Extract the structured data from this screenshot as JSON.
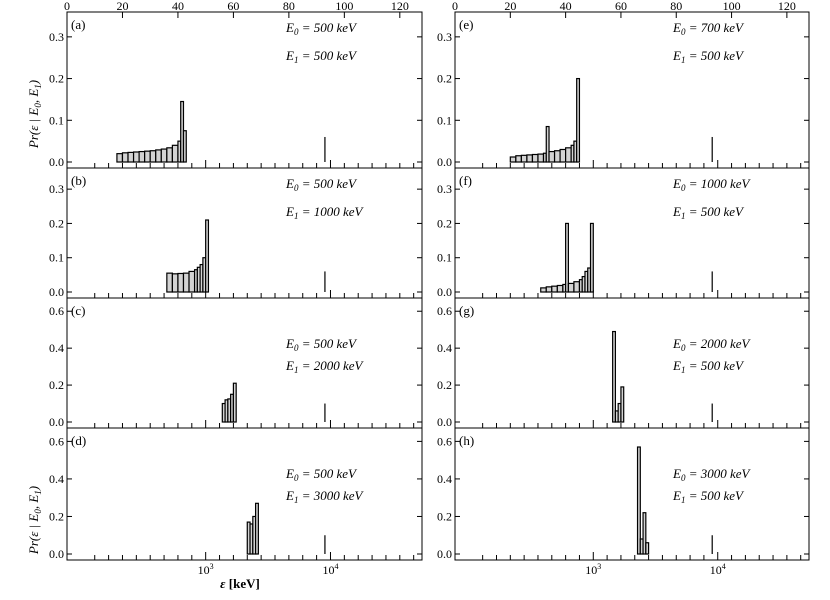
{
  "figure": {
    "xlabel_symbol": "ε",
    "xlabel_unit": " [keV]",
    "ylabel_main": "Pr(ε | E",
    "ylabel_sub0": "0",
    "ylabel_mid": ", E",
    "ylabel_sub1": "1",
    "ylabel_end": ")",
    "top_axis_ticks": [
      "0",
      "20",
      "40",
      "60",
      "80",
      "100",
      "120"
    ],
    "bottom_axis_ticks": [
      {
        "value": 1000,
        "base": "10",
        "exp": "3"
      },
      {
        "value": 10000,
        "base": "10",
        "exp": "4"
      }
    ],
    "bar_fill_color": "#d3d3d3",
    "line_color": "#000000"
  },
  "chart_data": [
    {
      "type": "bar",
      "panel": "(a)",
      "column": "left",
      "row": 0,
      "ylim": [
        0,
        0.35
      ],
      "yticks": [
        "0.0",
        "0.1",
        "0.2",
        "0.3"
      ],
      "annotation_e0": {
        "label": "E",
        "sub": "0",
        "value": " = 500 keV"
      },
      "annotation_e1": {
        "label": "E",
        "sub": "1",
        "value": " = 500 keV"
      },
      "x_top_units": [
        18,
        20,
        22,
        24,
        26,
        28,
        30,
        32,
        34,
        36,
        38,
        40,
        41,
        42
      ],
      "values": [
        0.02,
        0.022,
        0.023,
        0.024,
        0.025,
        0.026,
        0.027,
        0.029,
        0.031,
        0.034,
        0.04,
        0.05,
        0.145,
        0.075
      ],
      "bin_width_top_units": [
        2,
        2,
        2,
        2,
        2,
        2,
        2,
        2,
        2,
        2,
        2,
        1,
        1,
        1
      ],
      "markers": [
        {
          "x": 93,
          "value": 0.06
        }
      ]
    },
    {
      "type": "bar",
      "panel": "(b)",
      "column": "left",
      "row": 1,
      "ylim": [
        0,
        0.35
      ],
      "yticks": [
        "0.0",
        "0.1",
        "0.2",
        "0.3"
      ],
      "annotation_e0": {
        "label": "E",
        "sub": "0",
        "value": " = 500 keV"
      },
      "annotation_e1": {
        "label": "E",
        "sub": "1",
        "value": " = 1000 keV"
      },
      "x_top_units": [
        36,
        38,
        40,
        42,
        44,
        46,
        47,
        48,
        49,
        50,
        51
      ],
      "values": [
        0.055,
        0.053,
        0.054,
        0.055,
        0.06,
        0.065,
        0.072,
        0.08,
        0.1,
        0.21,
        0.0
      ],
      "bin_width_top_units": [
        2,
        2,
        2,
        2,
        2,
        1,
        1,
        1,
        1,
        1,
        0
      ],
      "markers": [
        {
          "x": 93,
          "value": 0.06
        }
      ]
    },
    {
      "type": "bar",
      "panel": "(c)",
      "column": "left",
      "row": 2,
      "ylim": [
        0,
        0.65
      ],
      "yticks": [
        "0.0",
        "0.2",
        "0.4",
        "0.6"
      ],
      "annotation_e0": {
        "label": "E",
        "sub": "0",
        "value": " = 500 keV"
      },
      "annotation_e1": {
        "label": "E",
        "sub": "1",
        "value": " = 2000 keV"
      },
      "x_top_units": [
        56,
        57,
        58,
        59,
        60,
        61
      ],
      "values": [
        0.1,
        0.12,
        0.125,
        0.15,
        0.21,
        0.0
      ],
      "bin_width_top_units": [
        1,
        1,
        1,
        1,
        1,
        0
      ],
      "markers": [
        {
          "x": 93,
          "value": 0.1
        }
      ]
    },
    {
      "type": "bar",
      "panel": "(d)",
      "column": "left",
      "row": 3,
      "ylim": [
        0,
        0.65
      ],
      "yticks": [
        "0.0",
        "0.2",
        "0.4",
        "0.6"
      ],
      "annotation_e0": {
        "label": "E",
        "sub": "0",
        "value": " = 500 keV"
      },
      "annotation_e1": {
        "label": "E",
        "sub": "1",
        "value": " = 3000 keV"
      },
      "x_top_units": [
        65,
        66,
        67,
        68,
        69
      ],
      "values": [
        0.17,
        0.16,
        0.2,
        0.27,
        0.0
      ],
      "bin_width_top_units": [
        1,
        1,
        1,
        1,
        0
      ],
      "markers": [
        {
          "x": 93,
          "value": 0.1
        }
      ]
    },
    {
      "type": "bar",
      "panel": "(e)",
      "column": "right",
      "row": 0,
      "ylim": [
        0,
        0.35
      ],
      "yticks": [
        "0.0",
        "0.1",
        "0.2",
        "0.3"
      ],
      "annotation_e0": {
        "label": "E",
        "sub": "0",
        "value": " = 700 keV"
      },
      "annotation_e1": {
        "label": "E",
        "sub": "1",
        "value": " = 500 keV"
      },
      "x_top_units": [
        20,
        22,
        24,
        26,
        28,
        30,
        32,
        33,
        34,
        36,
        38,
        40,
        42,
        43,
        44,
        45
      ],
      "values": [
        0.012,
        0.015,
        0.016,
        0.017,
        0.018,
        0.019,
        0.021,
        0.085,
        0.025,
        0.027,
        0.03,
        0.034,
        0.04,
        0.05,
        0.2,
        0.0
      ],
      "bin_width_top_units": [
        2,
        2,
        2,
        2,
        2,
        2,
        1,
        1,
        2,
        2,
        2,
        2,
        1,
        1,
        1,
        0
      ],
      "markers": [
        {
          "x": 93,
          "value": 0.06
        }
      ]
    },
    {
      "type": "bar",
      "panel": "(f)",
      "column": "right",
      "row": 1,
      "ylim": [
        0,
        0.35
      ],
      "yticks": [
        "0.0",
        "0.1",
        "0.2",
        "0.3"
      ],
      "annotation_e0": {
        "label": "E",
        "sub": "0",
        "value": " = 1000 keV"
      },
      "annotation_e1": {
        "label": "E",
        "sub": "1",
        "value": " = 500 keV"
      },
      "x_top_units": [
        31,
        33,
        35,
        37,
        39,
        40,
        41,
        43,
        45,
        46,
        47,
        48,
        49,
        50
      ],
      "values": [
        0.012,
        0.015,
        0.017,
        0.019,
        0.022,
        0.2,
        0.025,
        0.03,
        0.036,
        0.045,
        0.06,
        0.07,
        0.2,
        0.0
      ],
      "bin_width_top_units": [
        2,
        2,
        2,
        2,
        1,
        1,
        2,
        2,
        1,
        1,
        1,
        1,
        1,
        0
      ],
      "markers": [
        {
          "x": 93,
          "value": 0.06
        }
      ]
    },
    {
      "type": "bar",
      "panel": "(g)",
      "column": "right",
      "row": 2,
      "ylim": [
        0,
        0.65
      ],
      "yticks": [
        "0.0",
        "0.2",
        "0.4",
        "0.6"
      ],
      "annotation_e0": {
        "label": "E",
        "sub": "0",
        "value": " = 2000 keV"
      },
      "annotation_e1": {
        "label": "E",
        "sub": "1",
        "value": " = 500 keV"
      },
      "x_top_units": [
        57,
        58,
        59,
        60,
        61
      ],
      "values": [
        0.49,
        0.06,
        0.1,
        0.19,
        0.0
      ],
      "bin_width_top_units": [
        1,
        1,
        1,
        1,
        0
      ],
      "markers": [
        {
          "x": 93,
          "value": 0.1
        }
      ]
    },
    {
      "type": "bar",
      "panel": "(h)",
      "column": "right",
      "row": 3,
      "ylim": [
        0,
        0.65
      ],
      "yticks": [
        "0.0",
        "0.2",
        "0.4",
        "0.6"
      ],
      "annotation_e0": {
        "label": "E",
        "sub": "0",
        "value": " = 3000 keV"
      },
      "annotation_e1": {
        "label": "E",
        "sub": "1",
        "value": " = 500 keV"
      },
      "x_top_units": [
        66,
        67,
        68,
        69,
        70
      ],
      "values": [
        0.57,
        0.08,
        0.22,
        0.06,
        0.0
      ],
      "bin_width_top_units": [
        1,
        1,
        1,
        1,
        0
      ],
      "markers": [
        {
          "x": 93,
          "value": 0.1
        }
      ]
    }
  ]
}
